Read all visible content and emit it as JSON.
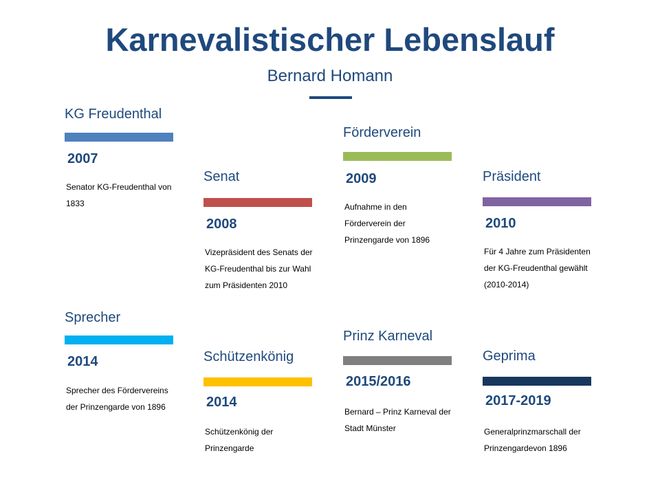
{
  "header": {
    "title": "Karnevalistischer Lebenslauf",
    "subtitle": "Bernard Homann"
  },
  "entries": [
    {
      "heading": "KG Freudenthal",
      "year": "2007",
      "text": "Senator KG-Freudenthal von 1833",
      "color": "#4f81bd"
    },
    {
      "heading": "Senat",
      "year": "2008",
      "text": "Vizepräsident des Senats der KG-Freudenthal bis zur Wahl zum Präsidenten 2010",
      "color": "#c0504d"
    },
    {
      "heading": "Förderverein",
      "year": "2009",
      "text": "Aufnahme in den Förderverein der Prinzengarde von 1896",
      "color": "#9bbb59"
    },
    {
      "heading": "Präsident",
      "year": "2010",
      "text": "Für 4 Jahre zum Präsidenten der KG-Freudenthal gewählt (2010-2014)",
      "color": "#8064a2"
    },
    {
      "heading": "Sprecher",
      "year": "2014",
      "text": "Sprecher des Fördervereins der Prinzengarde von 1896",
      "color": "#00b0f0"
    },
    {
      "heading": "Schützenkönig",
      "year": "2014",
      "text": "Schützenkönig der Prinzengarde",
      "color": "#ffc000"
    },
    {
      "heading": "Prinz Karneval",
      "year": "2015/2016",
      "text": "Bernard – Prinz Karneval der Stadt Münster",
      "color": "#7f7f7f"
    },
    {
      "heading": "Geprima",
      "year": "2017-2019",
      "text": "Generalprinzmarschall der Prinzengardevon 1896",
      "color": "#17375e"
    }
  ]
}
